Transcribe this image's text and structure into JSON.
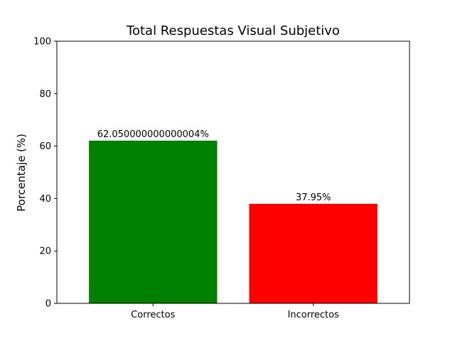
{
  "chart_data": {
    "type": "bar",
    "title": "Total Respuestas Visual Subjetivo",
    "xlabel": "",
    "ylabel": "Porcentaje (%)",
    "categories": [
      "Correctos",
      "Incorrectos"
    ],
    "values": [
      62.05,
      37.95
    ],
    "data_labels": [
      "62.050000000000004%",
      "37.95%"
    ],
    "colors": [
      "#008000",
      "#ff0000"
    ],
    "ylim": [
      0,
      100
    ],
    "yticks": [
      0,
      20,
      40,
      60,
      80,
      100
    ],
    "grid": false,
    "legend": "none"
  }
}
